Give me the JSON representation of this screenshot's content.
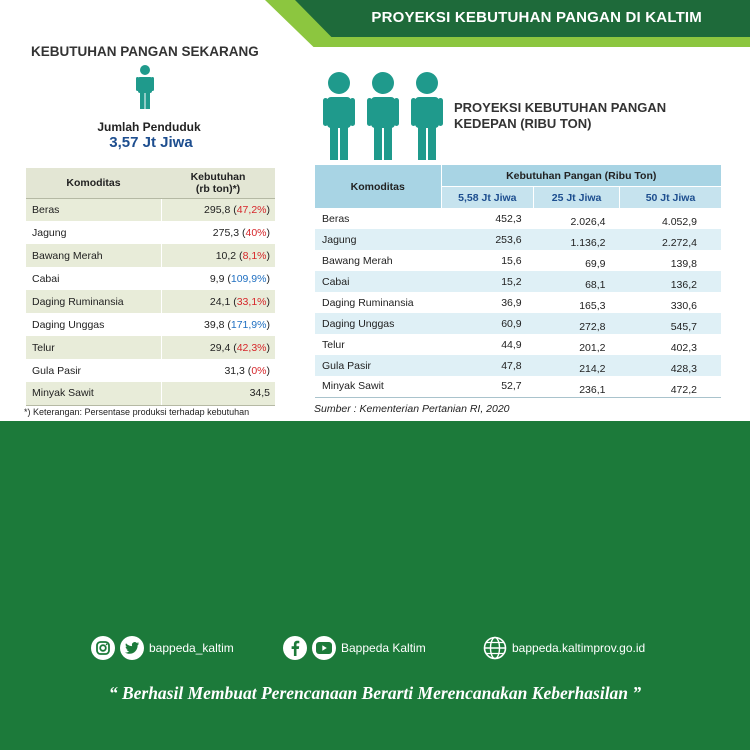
{
  "header": {
    "title": "PROYEKSI KEBUTUHAN PANGAN DI KALTIM"
  },
  "current": {
    "title": "KEBUTUHAN PANGAN SEKARANG",
    "population_label": "Jumlah Penduduk",
    "population_value": "3,57 Jt Jiwa",
    "table": {
      "col_komoditas": "Komoditas",
      "col_kebutuhan_line1": "Kebutuhan",
      "col_kebutuhan_line2": "(rb ton)*)",
      "rows": [
        {
          "name": "Beras",
          "value": "295,8",
          "pct": "47,2%",
          "pct_color": "#d6262a"
        },
        {
          "name": "Jagung",
          "value": "275,3",
          "pct": "40%",
          "pct_color": "#d6262a"
        },
        {
          "name": "Bawang Merah",
          "value": "10,2",
          "pct": "8,1%",
          "pct_color": "#d6262a"
        },
        {
          "name": "Cabai",
          "value": "9,9",
          "pct": "109,9%",
          "pct_color": "#1f6fc1"
        },
        {
          "name": "Daging Ruminansia",
          "value": "24,1",
          "pct": "33,1%",
          "pct_color": "#d6262a"
        },
        {
          "name": "Daging Unggas",
          "value": "39,8",
          "pct": "171,9%",
          "pct_color": "#1f6fc1"
        },
        {
          "name": "Telur",
          "value": "29,4",
          "pct": "42,3%",
          "pct_color": "#d6262a"
        },
        {
          "name": "Gula Pasir",
          "value": "31,3",
          "pct": "0%",
          "pct_color": "#d6262a"
        },
        {
          "name": "Minyak Sawit",
          "value": "34,5",
          "pct": "",
          "pct_color": ""
        }
      ]
    },
    "footnote": "*) Keterangan: Persentase produksi terhadap kebutuhan"
  },
  "projection": {
    "title_line1": "PROYEKSI KEBUTUHAN PANGAN",
    "title_line2": "KEDEPAN (RIBU TON)",
    "table": {
      "col_komoditas": "Komoditas",
      "group_header": "Kebutuhan  Pangan (Ribu Ton)",
      "sub_headers": [
        "5,58 Jt Jiwa",
        "25 Jt Jiwa",
        "50 Jt Jiwa"
      ],
      "rows": [
        {
          "name": "Beras",
          "values": [
            "452,3",
            "2.026,4",
            "4.052,9"
          ]
        },
        {
          "name": "Jagung",
          "values": [
            "253,6",
            "1.136,2",
            "2.272,4"
          ]
        },
        {
          "name": "Bawang Merah",
          "values": [
            "15,6",
            "69,9",
            "139,8"
          ]
        },
        {
          "name": "Cabai",
          "values": [
            "15,2",
            "68,1",
            "136,2"
          ]
        },
        {
          "name": "Daging Ruminansia",
          "values": [
            "36,9",
            "165,3",
            "330,6"
          ]
        },
        {
          "name": "Daging Unggas",
          "values": [
            "60,9",
            "272,8",
            "545,7"
          ]
        },
        {
          "name": "Telur",
          "values": [
            "44,9",
            "201,2",
            "402,3"
          ]
        },
        {
          "name": "Gula Pasir",
          "values": [
            "47,8",
            "214,2",
            "428,3"
          ]
        },
        {
          "name": "Minyak Sawit",
          "values": [
            "52,7",
            "236,1",
            "472,2"
          ]
        }
      ]
    },
    "source": "Sumber : Kementerian Pertanian RI, 2020"
  },
  "footer": {
    "instagram_twitter_handle": "bappeda_kaltim",
    "facebook_youtube_handle": "Bappeda Kaltim",
    "website": "bappeda.kaltimprov.go.id",
    "tagline": "“ Berhasil  Membuat Perencanaan Berarti Merencanakan Keberhasilan ”"
  },
  "colors": {
    "header_dark": "#1e6a3a",
    "header_light": "#8cc63f",
    "footer_green": "#1c7a3a",
    "person_teal": "#1f9a8c",
    "pct_red": "#d6262a",
    "pct_blue": "#1f6fc1"
  }
}
